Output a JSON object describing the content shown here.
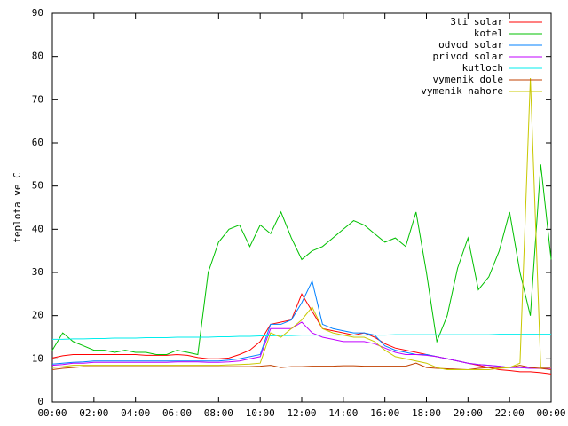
{
  "chart_data": {
    "type": "line",
    "y_label": "teplota ve C",
    "x": [
      0,
      0.5,
      1,
      1.5,
      2,
      2.5,
      3,
      3.5,
      4,
      4.5,
      5,
      5.5,
      6,
      6.5,
      7,
      7.5,
      8,
      8.5,
      9,
      9.5,
      10,
      10.5,
      11,
      11.5,
      12,
      12.5,
      13,
      13.5,
      14,
      14.5,
      15,
      15.5,
      16,
      16.5,
      17,
      17.5,
      18,
      18.5,
      19,
      19.5,
      20,
      20.5,
      21,
      21.5,
      22,
      22.5,
      23,
      23.5,
      24
    ],
    "xlim": [
      0,
      24
    ],
    "xticks": [
      {
        "value": 0,
        "label": "00:00"
      },
      {
        "value": 2,
        "label": "02:00"
      },
      {
        "value": 4,
        "label": "04:00"
      },
      {
        "value": 6,
        "label": "06:00"
      },
      {
        "value": 8,
        "label": "08:00"
      },
      {
        "value": 10,
        "label": "10:00"
      },
      {
        "value": 12,
        "label": "12:00"
      },
      {
        "value": 14,
        "label": "14:00"
      },
      {
        "value": 16,
        "label": "16:00"
      },
      {
        "value": 18,
        "label": "18:00"
      },
      {
        "value": 20,
        "label": "20:00"
      },
      {
        "value": 22,
        "label": "22:00"
      },
      {
        "value": 24,
        "label": "00:00"
      }
    ],
    "ylim": [
      0,
      90
    ],
    "yticks": [
      0,
      10,
      20,
      30,
      40,
      50,
      60,
      70,
      80,
      90
    ],
    "legend": "top-right",
    "series": [
      {
        "name": "3ti solar",
        "color": "#ff0000",
        "values": [
          10.2,
          10.7,
          11,
          11,
          11,
          11,
          11,
          11,
          11,
          10.8,
          10.8,
          10.8,
          11,
          10.8,
          10.3,
          10,
          10,
          10.2,
          11,
          12,
          14,
          18,
          18.5,
          19,
          25,
          21,
          17,
          16.5,
          16,
          15.5,
          16,
          15,
          13.5,
          12.5,
          12,
          11.5,
          11,
          10.5,
          10,
          9.5,
          9,
          8.5,
          8,
          7.5,
          7.3,
          7,
          7,
          6.8,
          6.5
        ]
      },
      {
        "name": "kotel",
        "color": "#00c000",
        "values": [
          12,
          16,
          14,
          13,
          12,
          12,
          11.5,
          12,
          11.5,
          11.5,
          11,
          11,
          12,
          11.5,
          11,
          30,
          37,
          40,
          41,
          36,
          41,
          39,
          44,
          38,
          33,
          35,
          36,
          38,
          40,
          42,
          41,
          39,
          37,
          38,
          36,
          44,
          30,
          14,
          20,
          31,
          38,
          26,
          29,
          35,
          44,
          30,
          20,
          55,
          33
        ]
      },
      {
        "name": "odvod solar",
        "color": "#0080ff",
        "values": [
          8.8,
          9,
          9.2,
          9.3,
          9.5,
          9.5,
          9.5,
          9.5,
          9.5,
          9.5,
          9.5,
          9.5,
          9.5,
          9.5,
          9.5,
          9.5,
          9.5,
          9.7,
          10,
          10.5,
          11,
          18,
          18,
          19,
          23,
          28,
          18,
          17,
          16.5,
          16,
          16,
          15.5,
          13,
          12,
          11.5,
          11,
          11,
          10.5,
          10,
          9.5,
          9,
          8.7,
          8.5,
          8.3,
          8,
          8,
          7.8,
          7.8,
          7.8
        ]
      },
      {
        "name": "privod solar",
        "color": "#c000ff",
        "values": [
          8.5,
          8.7,
          9,
          9,
          9.2,
          9.2,
          9.2,
          9.2,
          9.2,
          9.2,
          9.2,
          9.2,
          9.3,
          9.3,
          9.3,
          9.2,
          9.2,
          9.3,
          9.5,
          10,
          10.5,
          17,
          17,
          17,
          18.5,
          16,
          15,
          14.5,
          14,
          14,
          14,
          13.5,
          12.5,
          11.5,
          11,
          11,
          10.8,
          10.5,
          10,
          9.5,
          9,
          8.7,
          8.5,
          8.3,
          8,
          8,
          7.8,
          7.8,
          7.8
        ]
      },
      {
        "name": "kutloch",
        "color": "#00eeee",
        "values": [
          14.5,
          14.5,
          14.6,
          14.6,
          14.7,
          14.7,
          14.8,
          14.8,
          14.8,
          14.9,
          14.9,
          14.9,
          15,
          15,
          15,
          15,
          15.1,
          15.1,
          15.2,
          15.2,
          15.3,
          15.3,
          15.4,
          15.4,
          15.5,
          15.5,
          15.5,
          15.5,
          15.5,
          15.5,
          15.5,
          15.5,
          15.5,
          15.6,
          15.6,
          15.6,
          15.6,
          15.6,
          15.6,
          15.6,
          15.6,
          15.6,
          15.6,
          15.7,
          15.7,
          15.7,
          15.7,
          15.7,
          15.7
        ]
      },
      {
        "name": "vymenik dole",
        "color": "#c04000",
        "values": [
          7.5,
          7.8,
          8,
          8.2,
          8.2,
          8.2,
          8.2,
          8.2,
          8.2,
          8.2,
          8.2,
          8.2,
          8.2,
          8.2,
          8.2,
          8.2,
          8.2,
          8.2,
          8.2,
          8.2,
          8.3,
          8.5,
          8,
          8.2,
          8.2,
          8.3,
          8.3,
          8.3,
          8.4,
          8.4,
          8.3,
          8.3,
          8.3,
          8.3,
          8.3,
          9,
          8,
          7.8,
          7.7,
          7.6,
          7.5,
          7.8,
          8,
          8,
          8,
          8.5,
          8,
          7.8,
          7.5
        ]
      },
      {
        "name": "vymenik nahore",
        "color": "#c8c800",
        "values": [
          8,
          8.2,
          8.5,
          8.5,
          8.5,
          8.5,
          8.5,
          8.5,
          8.5,
          8.5,
          8.5,
          8.5,
          8.5,
          8.5,
          8.5,
          8.5,
          8.5,
          8.6,
          8.7,
          8.8,
          9,
          16,
          15,
          17,
          19,
          22,
          17,
          16,
          15.5,
          15,
          15,
          14,
          12,
          10.5,
          10,
          9.5,
          9,
          8,
          7.5,
          7.5,
          7.5,
          7.5,
          7.5,
          7.8,
          8,
          9,
          75,
          8,
          8
        ]
      }
    ]
  }
}
